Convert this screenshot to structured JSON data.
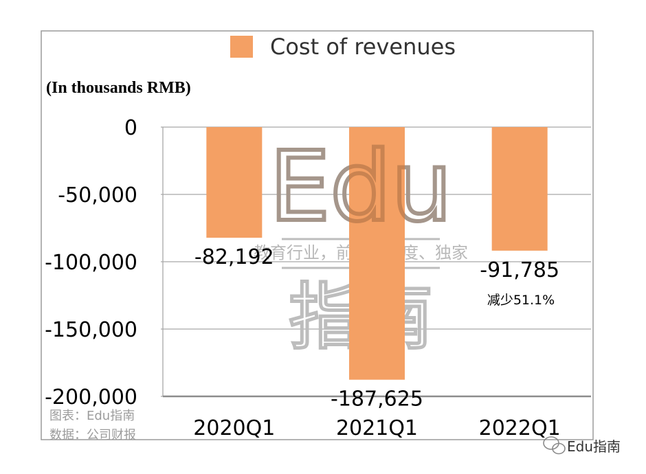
{
  "chart_data": {
    "type": "bar",
    "title": "",
    "unit_label": "(In thousands RMB)",
    "legend": {
      "position": "top-center"
    },
    "categories": [
      "2020Q1",
      "2021Q1",
      "2022Q1"
    ],
    "series": [
      {
        "name": "Cost of revenues",
        "values": [
          -82192,
          -187625,
          -91785
        ]
      }
    ],
    "data_labels": [
      "-82,192",
      "-187,625",
      "-91,785"
    ],
    "annotation": "减少51.1%",
    "ylim": [
      -200000,
      0
    ],
    "yticks": [
      0,
      -50000,
      -100000,
      -150000,
      -200000
    ],
    "ytick_labels": [
      "0",
      "-50,000",
      "-100,000",
      "-150,000",
      "-200,000"
    ],
    "grid": true,
    "bar_color": "#f4a064"
  },
  "watermark": {
    "line1": "Edu",
    "line2": "教育行业，前沿、深度、独家",
    "line3": "指南"
  },
  "footer": {
    "source_chart": "图表：Edu指南",
    "source_data": "数据：公司财报",
    "brand": "Edu指南"
  }
}
